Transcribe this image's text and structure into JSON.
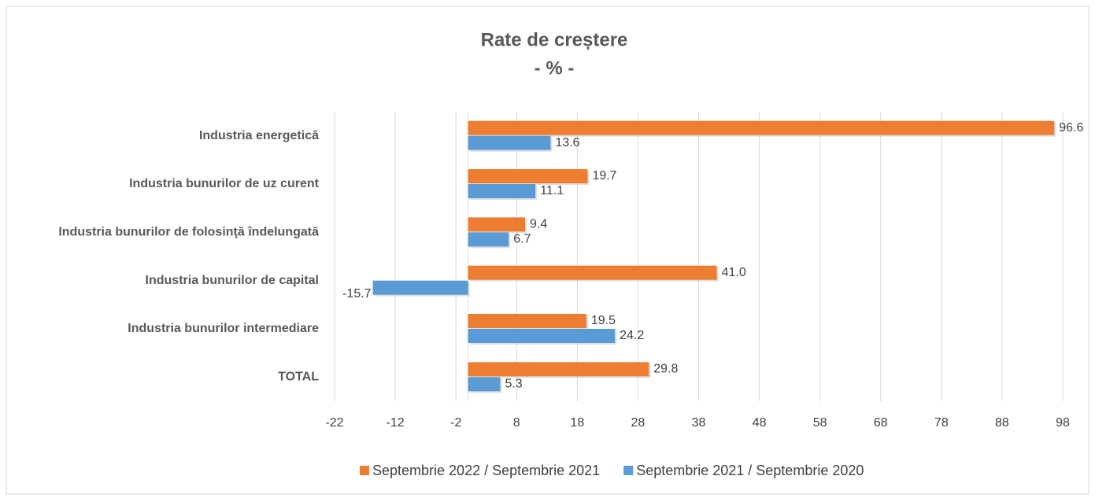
{
  "chart_data": {
    "type": "hbar",
    "title": "Rate de creștere",
    "subtitle": "- % -",
    "categories": [
      "Industria energetică",
      "Industria bunurilor de uz curent",
      "Industria bunurilor de folosinţă  îndelungată",
      "Industria bunurilor de capital",
      "Industria bunurilor intermediare",
      "TOTAL"
    ],
    "series": [
      {
        "name": "Septembrie 2022 / Septembrie 2021",
        "color": "#ed7d31",
        "values": [
          96.6,
          19.7,
          9.4,
          41.0,
          19.5,
          29.8
        ],
        "value_labels": [
          "96.6",
          "19.7",
          "9.4",
          "41.0",
          "19.5",
          "29.8"
        ]
      },
      {
        "name": "Septembrie 2021 / Septembrie 2020",
        "color": "#5b9bd5",
        "values": [
          13.6,
          11.1,
          6.7,
          -15.7,
          24.2,
          5.3
        ],
        "value_labels": [
          "13.6",
          "11.1",
          "6.7",
          "-15.7",
          "24.2",
          "5.3"
        ]
      }
    ],
    "xlim": [
      -22,
      98
    ],
    "xticks": [
      -22,
      -12,
      -2,
      8,
      18,
      28,
      38,
      48,
      58,
      68,
      78,
      88,
      98
    ],
    "grid": true,
    "legend": "bottom"
  }
}
